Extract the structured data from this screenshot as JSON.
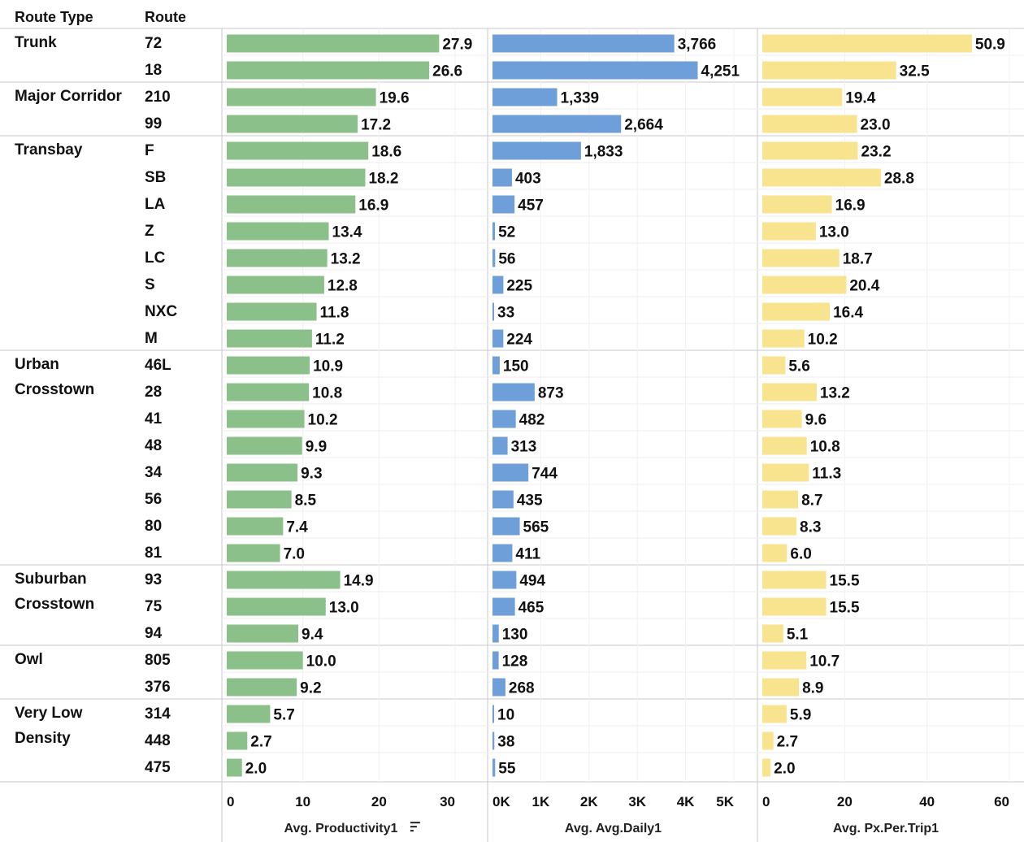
{
  "headers": {
    "route_type": "Route Type",
    "route": "Route"
  },
  "colors": {
    "productivity": "#8cc08a",
    "daily": "#6f9fd8",
    "px_per_trip": "#f8e38e",
    "grid": "#dcdcdc",
    "divider": "#c8c8c8"
  },
  "sort_icon": "sort-descending-icon",
  "chart_data": {
    "type": "bar",
    "orientation": "horizontal",
    "groups": [
      {
        "name": "Trunk",
        "lines": [
          "Trunk"
        ],
        "routes": [
          "72",
          "18"
        ]
      },
      {
        "name": "Major Corridor",
        "lines": [
          "Major Corridor"
        ],
        "routes": [
          "210",
          "99"
        ]
      },
      {
        "name": "Transbay",
        "lines": [
          "Transbay"
        ],
        "routes": [
          "F",
          "SB",
          "LA",
          "Z",
          "LC",
          "S",
          "NXC",
          "M"
        ]
      },
      {
        "name": "Urban Crosstown",
        "lines": [
          "Urban",
          "Crosstown"
        ],
        "routes": [
          "46L",
          "28",
          "41",
          "48",
          "34",
          "56",
          "80",
          "81"
        ]
      },
      {
        "name": "Suburban Crosstown",
        "lines": [
          "Suburban",
          "Crosstown"
        ],
        "routes": [
          "93",
          "75",
          "94"
        ]
      },
      {
        "name": "Owl",
        "lines": [
          "Owl"
        ],
        "routes": [
          "805",
          "376"
        ]
      },
      {
        "name": "Very Low Density",
        "lines": [
          "Very Low",
          "Density"
        ],
        "routes": [
          "314",
          "448",
          "475"
        ]
      }
    ],
    "panels": [
      {
        "key": "productivity",
        "xlabel": "Avg. Productivity1",
        "xlim": [
          0,
          30
        ],
        "ticks": [
          0,
          10,
          20,
          30
        ],
        "tick_labels": [
          "0",
          "10",
          "20",
          "30"
        ],
        "sorted": true,
        "values": [
          27.9,
          26.6,
          19.6,
          17.2,
          18.6,
          18.2,
          16.9,
          13.4,
          13.2,
          12.8,
          11.8,
          11.2,
          10.9,
          10.8,
          10.2,
          9.9,
          9.3,
          8.5,
          7.4,
          7.0,
          14.9,
          13.0,
          9.4,
          10.0,
          9.2,
          5.7,
          2.7,
          2.0
        ],
        "labels": [
          "27.9",
          "26.6",
          "19.6",
          "17.2",
          "18.6",
          "18.2",
          "16.9",
          "13.4",
          "13.2",
          "12.8",
          "11.8",
          "11.2",
          "10.9",
          "10.8",
          "10.2",
          "9.9",
          "9.3",
          "8.5",
          "7.4",
          "7.0",
          "14.9",
          "13.0",
          "9.4",
          "10.0",
          "9.2",
          "5.7",
          "2.7",
          "2.0"
        ]
      },
      {
        "key": "daily",
        "xlabel": "Avg. Avg.Daily1",
        "xlim": [
          0,
          5000
        ],
        "ticks": [
          0,
          1000,
          2000,
          3000,
          4000,
          5000
        ],
        "tick_labels": [
          "0K",
          "1K",
          "2K",
          "3K",
          "4K",
          "5K"
        ],
        "sorted": false,
        "values": [
          3766,
          4251,
          1339,
          2664,
          1833,
          403,
          457,
          52,
          56,
          225,
          33,
          224,
          150,
          873,
          482,
          313,
          744,
          435,
          565,
          411,
          494,
          465,
          130,
          128,
          268,
          10,
          38,
          55
        ],
        "labels": [
          "3,766",
          "4,251",
          "1,339",
          "2,664",
          "1,833",
          "403",
          "457",
          "52",
          "56",
          "225",
          "33",
          "224",
          "150",
          "873",
          "482",
          "313",
          "744",
          "435",
          "565",
          "411",
          "494",
          "465",
          "130",
          "128",
          "268",
          "10",
          "38",
          "55"
        ]
      },
      {
        "key": "px_per_trip",
        "xlabel": "Avg. Px.Per.Trip1",
        "xlim": [
          0,
          60
        ],
        "ticks": [
          0,
          20,
          40,
          60
        ],
        "tick_labels": [
          "0",
          "20",
          "40",
          "60"
        ],
        "sorted": false,
        "values": [
          50.9,
          32.5,
          19.4,
          23.0,
          23.2,
          28.8,
          16.9,
          13.0,
          18.7,
          20.4,
          16.4,
          10.2,
          5.6,
          13.2,
          9.6,
          10.8,
          11.3,
          8.7,
          8.3,
          6.0,
          15.5,
          15.5,
          5.1,
          10.7,
          8.9,
          5.9,
          2.7,
          2.0
        ],
        "labels": [
          "50.9",
          "32.5",
          "19.4",
          "23.0",
          "23.2",
          "28.8",
          "16.9",
          "13.0",
          "18.7",
          "20.4",
          "16.4",
          "10.2",
          "5.6",
          "13.2",
          "9.6",
          "10.8",
          "11.3",
          "8.7",
          "8.3",
          "6.0",
          "15.5",
          "15.5",
          "5.1",
          "10.7",
          "8.9",
          "5.9",
          "2.7",
          "2.0"
        ]
      }
    ]
  }
}
